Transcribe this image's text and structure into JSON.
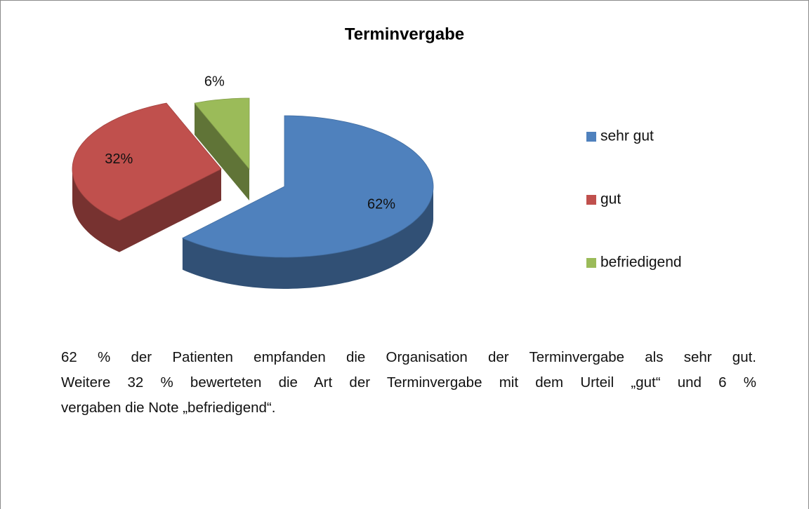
{
  "chart_data": {
    "type": "pie",
    "title": "Terminvergabe",
    "categories": [
      "sehr gut",
      "gut",
      "befriedigend"
    ],
    "values": [
      62,
      32,
      6
    ],
    "value_labels": [
      "62%",
      "32%",
      "6%"
    ],
    "colors": [
      "#4f81bd",
      "#c0504d",
      "#9bbb59"
    ],
    "legend": "right"
  },
  "text_lines": [
    "62 % der Patienten empfanden die Organisation der Terminvergabe als sehr gut.",
    "Weitere 32 % bewerteten die Art der Terminvergabe mit dem Urteil „gut“ und 6 %",
    "vergaben die Note „befriedigend“."
  ]
}
